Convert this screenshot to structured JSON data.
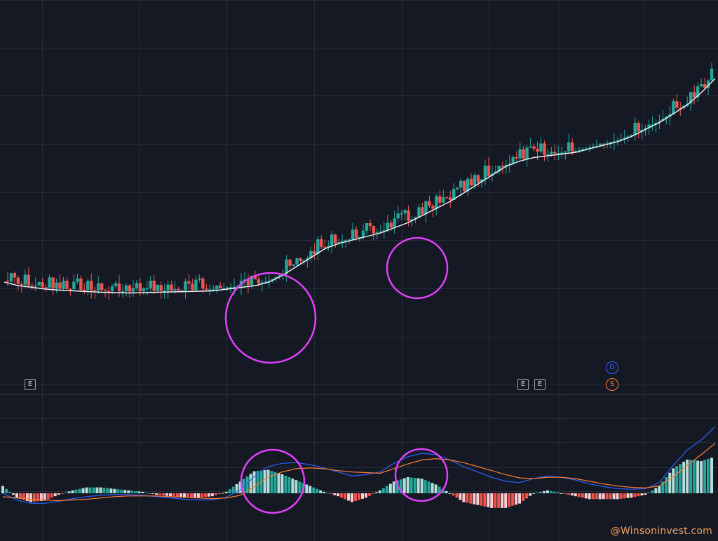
{
  "colors": {
    "background": "#151924",
    "grid": "#262b38",
    "up": "#26a69a",
    "down": "#ef5350",
    "moving_average": "#f2f3f5",
    "macd_line": "#2962ff",
    "signal_line": "#ff7b33",
    "hist_up": "#26a69a",
    "hist_up_weak": "#b2dfdb",
    "hist_down": "#ef5350",
    "hist_down_weak": "#ffcdd2",
    "highlight_circle": "#e040fb",
    "watermark": "#f0a060"
  },
  "badges": {
    "earnings_label": "E",
    "dividend_label": "D",
    "split_label": "S"
  },
  "watermark": "@Winsoninvest.com",
  "chart_data": [
    {
      "type": "candlestick",
      "title": "",
      "price_range": [
        0,
        100
      ],
      "grid": true,
      "moving_average": [
        84,
        85,
        85.5,
        86,
        86.3,
        86.5,
        86.7,
        86.9,
        87,
        87.1,
        87,
        86.9,
        86.8,
        86.7,
        86.6,
        86.5,
        86,
        85.5,
        85,
        84,
        82,
        79.5,
        77,
        74.5,
        73,
        72,
        71,
        70,
        68.5,
        67,
        65,
        63,
        61,
        58.5,
        56,
        53.5,
        51,
        49.5,
        48.5,
        48,
        47.5,
        47,
        46,
        45,
        44,
        42.5,
        40.5,
        38.5,
        36,
        33.5,
        30,
        26
      ],
      "earnings_events": [
        1,
        34,
        35
      ],
      "dividend_events": [
        40
      ],
      "split_events": [
        40
      ],
      "highlighted_regions": [
        17,
        27
      ]
    },
    {
      "type": "macd",
      "title": "",
      "macd": [
        0,
        -1,
        -1.5,
        -1.5,
        -1.2,
        -0.8,
        -0.5,
        -0.3,
        -0.2,
        -0.2,
        -0.3,
        -0.5,
        -0.7,
        -0.9,
        -1,
        -1,
        -0.6,
        0.5,
        2.5,
        4,
        4.5,
        4.6,
        4.3,
        3.8,
        3.2,
        2.6,
        2.8,
        3.2,
        4.5,
        5.5,
        6,
        5.8,
        5,
        4,
        3.2,
        2.4,
        1.8,
        1.6,
        2.2,
        2.6,
        2.4,
        2,
        1.4,
        1,
        0.7,
        0.6,
        0.7,
        1.6,
        4.2,
        6.5,
        8,
        10
      ],
      "signal": [
        -0.5,
        -0.7,
        -0.9,
        -1,
        -1.1,
        -1,
        -0.9,
        -0.7,
        -0.5,
        -0.4,
        -0.4,
        -0.4,
        -0.5,
        -0.6,
        -0.7,
        -0.8,
        -0.7,
        -0.3,
        1,
        2.4,
        3.2,
        3.7,
        3.8,
        3.7,
        3.4,
        3.2,
        3.1,
        3,
        3.7,
        4.4,
        5,
        5.2,
        5,
        4.6,
        4,
        3.4,
        2.8,
        2.3,
        2.2,
        2.4,
        2.4,
        2.2,
        1.8,
        1.4,
        1.1,
        0.9,
        0.8,
        1.1,
        2.5,
        4.2,
        5.8,
        7.5
      ]
    }
  ]
}
